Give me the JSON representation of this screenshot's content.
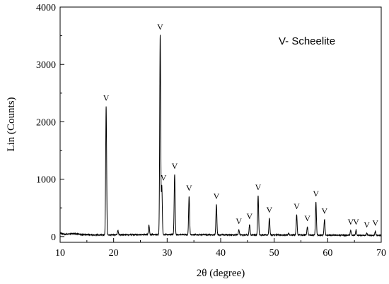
{
  "chart_data": {
    "type": "line",
    "xlabel": "2θ (degree)",
    "ylabel": "Lin (Counts)",
    "xlim": [
      10,
      70
    ],
    "ylim": [
      -100,
      4000
    ],
    "x_ticks": [
      10,
      20,
      30,
      40,
      50,
      60,
      70
    ],
    "y_ticks": [
      0,
      1000,
      2000,
      3000,
      4000
    ],
    "grid": false,
    "annotation": "V- Scheelite",
    "series": [
      {
        "color": "#000000",
        "baseline": [
          [
            10,
            60
          ],
          [
            11,
            40
          ],
          [
            12.5,
            55
          ],
          [
            14,
            35
          ],
          [
            16,
            30
          ],
          [
            20,
            30
          ],
          [
            30,
            35
          ],
          [
            40,
            30
          ],
          [
            50,
            28
          ],
          [
            60,
            25
          ],
          [
            70,
            20
          ]
        ],
        "peaks": [
          {
            "x": 18.6,
            "y": 2270
          },
          {
            "x": 20.8,
            "y": 110
          },
          {
            "x": 26.6,
            "y": 200
          },
          {
            "x": 28.7,
            "y": 3510
          },
          {
            "x": 29.0,
            "y": 880
          },
          {
            "x": 31.4,
            "y": 1080
          },
          {
            "x": 34.1,
            "y": 700
          },
          {
            "x": 39.2,
            "y": 560
          },
          {
            "x": 43.4,
            "y": 120
          },
          {
            "x": 45.4,
            "y": 210
          },
          {
            "x": 47.0,
            "y": 710
          },
          {
            "x": 49.1,
            "y": 320
          },
          {
            "x": 52.7,
            "y": 60
          },
          {
            "x": 54.2,
            "y": 380
          },
          {
            "x": 56.2,
            "y": 170
          },
          {
            "x": 57.8,
            "y": 600
          },
          {
            "x": 59.4,
            "y": 300
          },
          {
            "x": 64.3,
            "y": 110
          },
          {
            "x": 65.3,
            "y": 110
          },
          {
            "x": 67.3,
            "y": 60
          },
          {
            "x": 68.9,
            "y": 90
          }
        ]
      }
    ],
    "markers": [
      {
        "label": "V",
        "x": 18.6,
        "y": 2270
      },
      {
        "label": "V",
        "x": 28.7,
        "y": 3510
      },
      {
        "label": "V",
        "x": 29.3,
        "y": 880
      },
      {
        "label": "V",
        "x": 31.4,
        "y": 1080
      },
      {
        "label": "V",
        "x": 34.1,
        "y": 700
      },
      {
        "label": "V",
        "x": 39.2,
        "y": 560
      },
      {
        "label": "V",
        "x": 43.4,
        "y": 120
      },
      {
        "label": "V",
        "x": 45.4,
        "y": 210
      },
      {
        "label": "V",
        "x": 47.0,
        "y": 710
      },
      {
        "label": "V",
        "x": 49.1,
        "y": 320
      },
      {
        "label": "V",
        "x": 54.2,
        "y": 380
      },
      {
        "label": "V",
        "x": 56.2,
        "y": 170
      },
      {
        "label": "V",
        "x": 57.8,
        "y": 600
      },
      {
        "label": "V",
        "x": 59.4,
        "y": 300
      },
      {
        "label": "V",
        "x": 64.3,
        "y": 110
      },
      {
        "label": "V",
        "x": 65.3,
        "y": 110
      },
      {
        "label": "V",
        "x": 67.3,
        "y": 60
      },
      {
        "label": "V",
        "x": 68.9,
        "y": 90
      }
    ]
  }
}
